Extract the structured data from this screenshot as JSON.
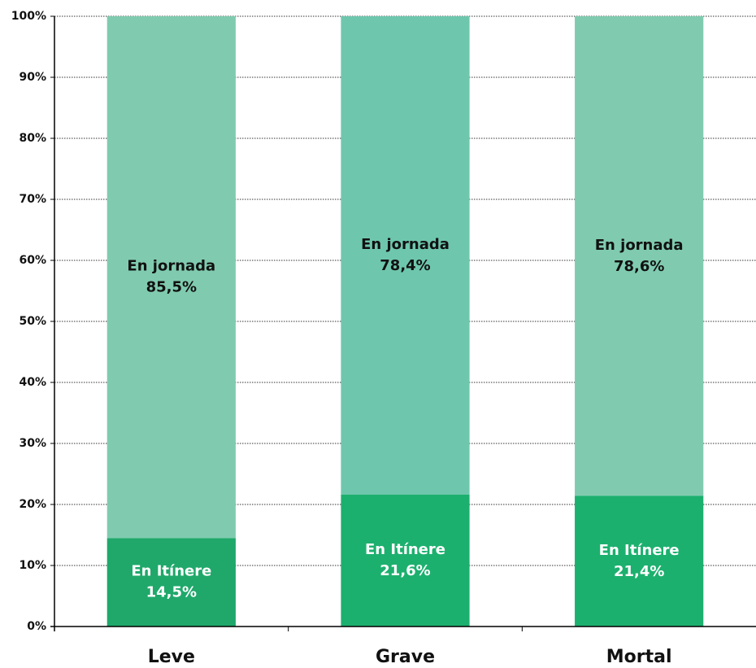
{
  "chart_data": {
    "type": "stacked_bar",
    "categories": [
      "Leve",
      "Grave",
      "Mortal"
    ],
    "series": [
      {
        "name": "En Itínere",
        "colors": [
          "#1fa86a",
          "#1cb06e",
          "#1cb06e"
        ],
        "label_color": "#ffffff",
        "values": [
          14.5,
          21.6,
          21.4
        ],
        "value_labels": [
          "14,5%",
          "21,6%",
          "21,4%"
        ]
      },
      {
        "name": "En jornada",
        "colors": [
          "#80cbb0",
          "#6ec7ad",
          "#80cbb0"
        ],
        "label_color": "#111111",
        "values": [
          85.5,
          78.4,
          78.6
        ],
        "value_labels": [
          "85,5%",
          "78,4%",
          "78,6%"
        ]
      }
    ],
    "ylim": [
      0,
      100
    ],
    "yticks": [
      {
        "value": 0,
        "label": "0%"
      },
      {
        "value": 10,
        "label": "10%"
      },
      {
        "value": 20,
        "label": "20%"
      },
      {
        "value": 30,
        "label": "30%"
      },
      {
        "value": 40,
        "label": "40%"
      },
      {
        "value": 50,
        "label": "50%"
      },
      {
        "value": 60,
        "label": "60%"
      },
      {
        "value": 70,
        "label": "70%"
      },
      {
        "value": 80,
        "label": "80%"
      },
      {
        "value": 90,
        "label": "90%"
      },
      {
        "value": 100,
        "label": "100%"
      }
    ],
    "grid": true
  }
}
